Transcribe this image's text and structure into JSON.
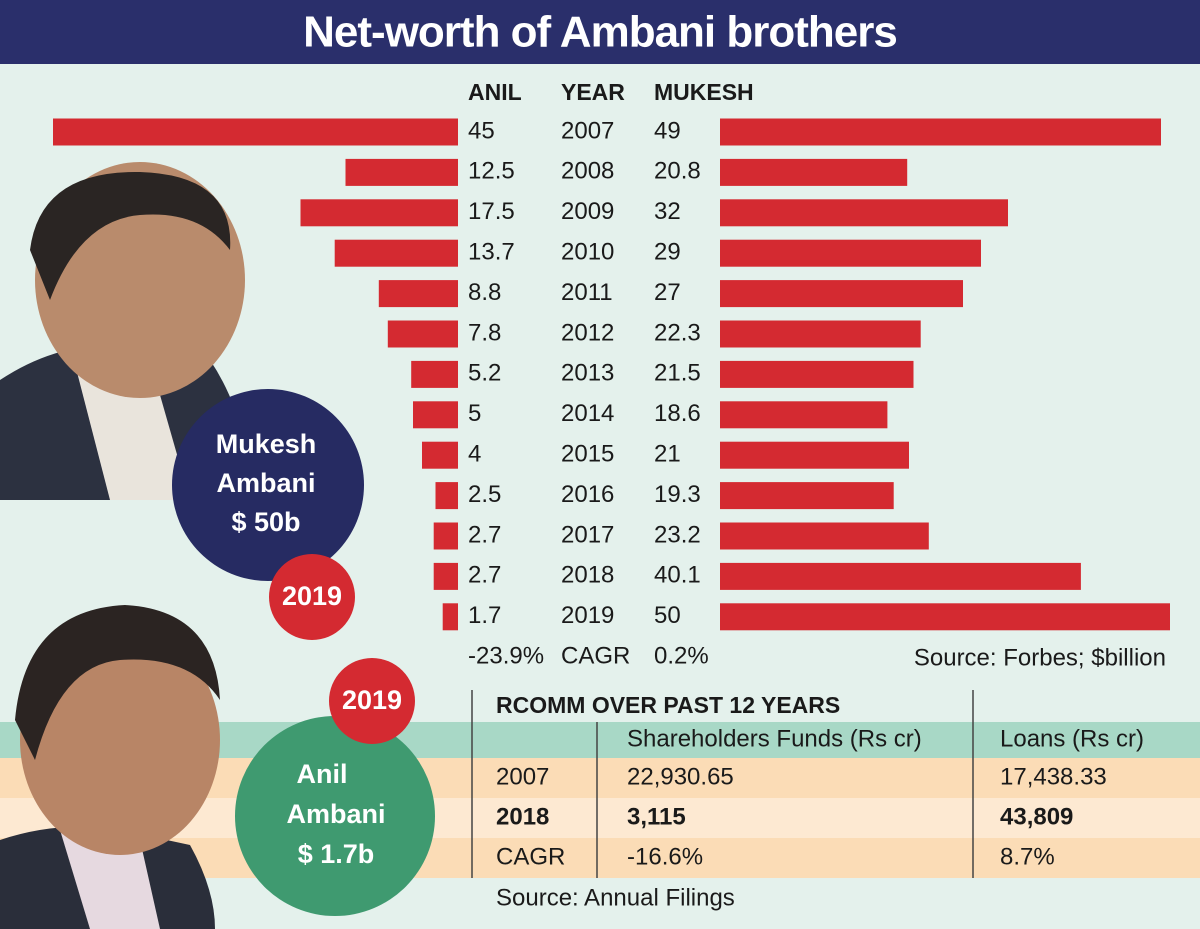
{
  "title": "Net-worth of Ambani brothers",
  "chart_data": {
    "type": "butterfly",
    "category_header": "YEAR",
    "categories": [
      "2007",
      "2008",
      "2009",
      "2010",
      "2011",
      "2012",
      "2013",
      "2014",
      "2015",
      "2016",
      "2017",
      "2018",
      "2019"
    ],
    "series": [
      {
        "name": "ANIL",
        "color": "#d42a31",
        "side": "left",
        "values": [
          45,
          12.5,
          17.5,
          13.7,
          8.8,
          7.8,
          5.2,
          5,
          4,
          2.5,
          2.7,
          2.7,
          1.7
        ]
      },
      {
        "name": "MUKESH",
        "color": "#d42a31",
        "side": "right",
        "values": [
          49,
          20.8,
          32,
          29,
          27,
          22.3,
          21.5,
          18.6,
          21,
          19.3,
          23.2,
          40.1,
          50
        ]
      }
    ],
    "summary": {
      "label": "CAGR",
      "values": [
        -23.9,
        0.2
      ],
      "value_labels": [
        "-23.9%",
        "0.2%"
      ]
    },
    "source": "Source: Forbes; $billion"
  },
  "badges": [
    {
      "name_lines": [
        "Mukesh",
        "Ambani"
      ],
      "amount": "$ 50b",
      "year": "2019"
    },
    {
      "name_lines": [
        "Anil",
        "Ambani"
      ],
      "amount": "$ 1.7b",
      "year": "2019"
    }
  ],
  "table": {
    "title": "RCOMM OVER PAST 12 YEARS",
    "columns": [
      "Shareholders Funds (Rs cr)",
      "Loans (Rs cr)"
    ],
    "rows": [
      [
        "2007",
        "22,930.65",
        "17,438.33"
      ],
      [
        "2018",
        "3,115",
        "43,809"
      ],
      [
        "CAGR",
        "-16.6%",
        "8.7%"
      ]
    ],
    "bold_rows": [
      1
    ],
    "source": "Source: Annual Filings"
  }
}
